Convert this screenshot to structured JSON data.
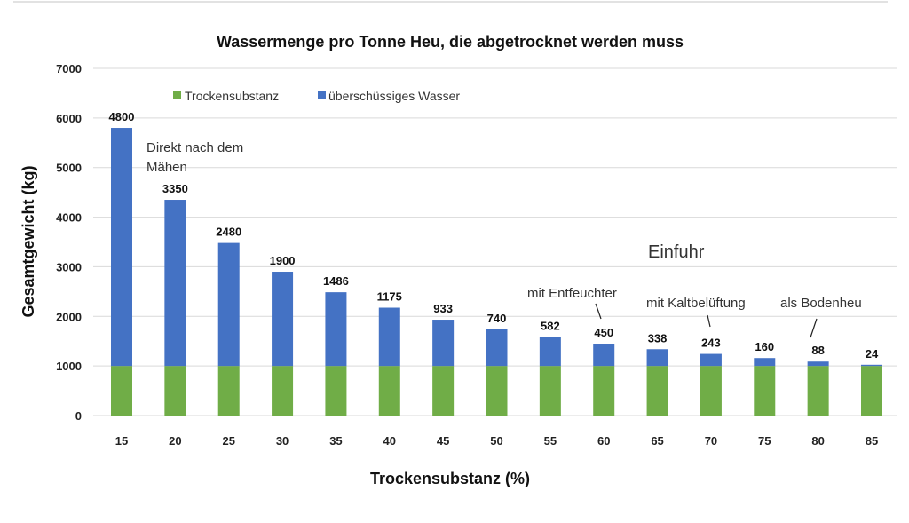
{
  "chart_data": {
    "type": "bar",
    "stacked": true,
    "title": "Wassermenge pro Tonne Heu, die abgetrocknet werden muss",
    "xlabel": "Trockensubstanz (%)",
    "ylabel": "Gesamtgewicht (kg)",
    "ylim": [
      0,
      7000
    ],
    "yticks": [
      0,
      1000,
      2000,
      3000,
      4000,
      5000,
      6000,
      7000
    ],
    "grid": true,
    "legend_placement": "top-left",
    "categories": [
      "15",
      "20",
      "25",
      "30",
      "35",
      "40",
      "45",
      "50",
      "55",
      "60",
      "65",
      "70",
      "75",
      "80",
      "85"
    ],
    "series": [
      {
        "name": "Trockensubstanz",
        "color": "#70ad47",
        "values": [
          1000,
          1000,
          1000,
          1000,
          1000,
          1000,
          1000,
          1000,
          1000,
          1000,
          1000,
          1000,
          1000,
          1000,
          1000
        ]
      },
      {
        "name": "überschüssiges Wasser",
        "color": "#4472c4",
        "values": [
          4800,
          3350,
          2480,
          1900,
          1486,
          1175,
          933,
          740,
          582,
          450,
          338,
          243,
          160,
          88,
          24
        ]
      }
    ],
    "annotations": [
      {
        "lines": [
          "Direkt nach dem",
          "Mähen"
        ],
        "category": "15"
      },
      {
        "lines": [
          "Einfuhr"
        ]
      },
      {
        "lines": [
          "mit Entfeuchter"
        ],
        "category": "60"
      },
      {
        "lines": [
          "mit Kaltbelüftung"
        ],
        "category": "70"
      },
      {
        "lines": [
          "als Bodenheu"
        ],
        "category": "80"
      }
    ]
  }
}
